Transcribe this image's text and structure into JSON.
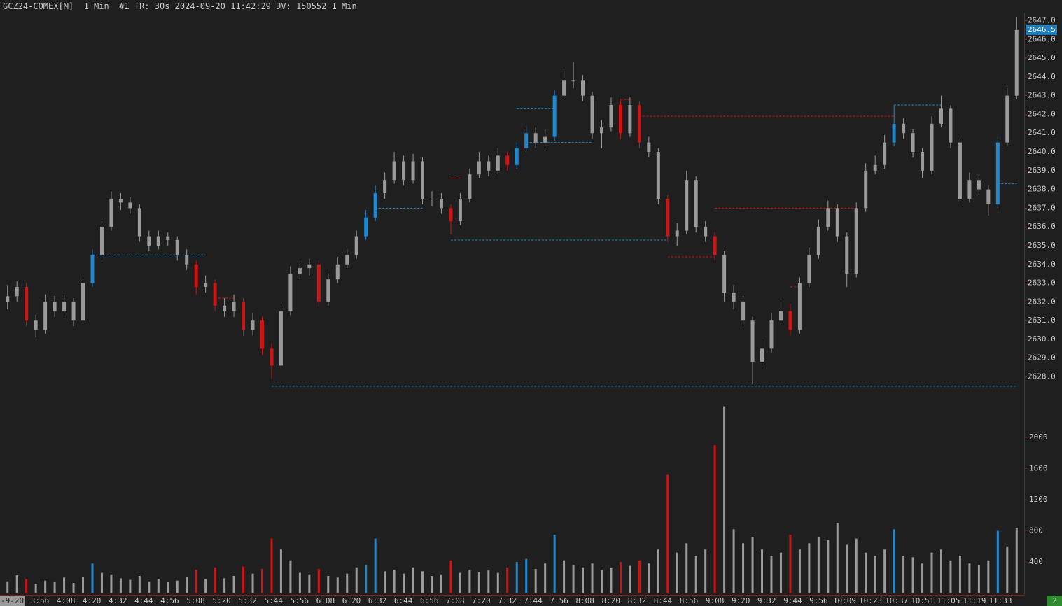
{
  "header": "GCZ24-COMEX[M]  1 Min  #1 TR: 30s 2024-09-20 11:42:29 DV: 150552 1 Min",
  "chart_data": {
    "type": "candlestick",
    "open": [
      2632.0,
      2632.3,
      2632.8,
      2631.0,
      2630.5,
      2632.0,
      2631.5,
      2632.0,
      2631.0,
      2633.0,
      2634.5,
      2636.0,
      2637.5,
      2637.3,
      2637.0,
      2635.5,
      2635.0,
      2635.5,
      2635.3,
      2634.5,
      2634.0,
      2632.8,
      2633.0,
      2631.8,
      2631.5,
      2632.0,
      2630.5,
      2631.0,
      2629.5,
      2628.6,
      2631.5,
      2633.5,
      2633.8,
      2634.0,
      2632.0,
      2633.2,
      2634.0,
      2634.5,
      2635.5,
      2636.5,
      2637.8,
      2638.5,
      2639.5,
      2638.5,
      2639.5,
      2637.5,
      2637.5,
      2637.0,
      2636.3,
      2637.5,
      2638.8,
      2639.5,
      2639.0,
      2639.8,
      2639.3,
      2640.2,
      2641.0,
      2640.5,
      2640.8,
      2643.0,
      2643.8,
      2643.8,
      2643.0,
      2641.0,
      2641.3,
      2642.5,
      2641.0,
      2642.5,
      2640.5,
      2640.0,
      2637.5,
      2635.5,
      2635.8,
      2638.5,
      2636.0,
      2635.5,
      2634.5,
      2632.5,
      2632.0,
      2631.0,
      2628.8,
      2629.5,
      2631.0,
      2631.5,
      2630.5,
      2633.0,
      2634.5,
      2636.0,
      2637.0,
      2635.5,
      2633.5,
      2637.0,
      2639.0,
      2639.3,
      2640.5,
      2641.5,
      2641.0,
      2640.0,
      2639.0,
      2641.5,
      2642.3,
      2640.5,
      2637.5,
      2638.5,
      2638.0,
      2637.2,
      2640.5,
      2643.0
    ],
    "high": [
      2632.9,
      2633.1,
      2633.0,
      2631.3,
      2632.4,
      2632.3,
      2632.5,
      2632.2,
      2633.4,
      2634.8,
      2636.3,
      2637.9,
      2637.8,
      2637.6,
      2637.2,
      2635.8,
      2635.8,
      2635.7,
      2635.5,
      2634.8,
      2634.2,
      2633.4,
      2633.2,
      2632.2,
      2632.4,
      2632.2,
      2631.4,
      2631.2,
      2629.8,
      2631.8,
      2633.9,
      2634.2,
      2634.3,
      2634.2,
      2633.5,
      2634.4,
      2634.8,
      2635.8,
      2636.9,
      2638.2,
      2638.9,
      2640.0,
      2639.8,
      2639.9,
      2639.7,
      2637.9,
      2637.8,
      2637.2,
      2637.8,
      2639.1,
      2640.0,
      2639.8,
      2640.2,
      2640.0,
      2640.5,
      2641.4,
      2641.3,
      2641.2,
      2643.3,
      2644.3,
      2644.8,
      2644.1,
      2643.2,
      2641.7,
      2642.9,
      2642.8,
      2642.9,
      2642.7,
      2640.8,
      2640.2,
      2637.7,
      2636.2,
      2639.0,
      2638.7,
      2636.3,
      2635.7,
      2634.7,
      2632.9,
      2632.3,
      2631.2,
      2629.9,
      2631.4,
      2632.0,
      2631.9,
      2633.3,
      2634.9,
      2636.4,
      2637.4,
      2637.2,
      2635.7,
      2637.3,
      2639.4,
      2639.8,
      2640.9,
      2642.5,
      2641.8,
      2641.2,
      2640.2,
      2641.9,
      2643.0,
      2642.5,
      2640.7,
      2638.9,
      2638.8,
      2638.2,
      2640.8,
      2643.4,
      2647.2
    ],
    "low": [
      2631.6,
      2632.0,
      2630.7,
      2630.1,
      2630.3,
      2631.2,
      2631.2,
      2630.7,
      2630.8,
      2632.8,
      2634.3,
      2635.8,
      2636.9,
      2636.7,
      2635.2,
      2634.7,
      2634.8,
      2635.0,
      2634.2,
      2633.7,
      2632.4,
      2632.5,
      2631.5,
      2631.2,
      2631.2,
      2630.2,
      2630.2,
      2629.2,
      2627.9,
      2628.4,
      2631.3,
      2633.2,
      2633.4,
      2631.7,
      2631.8,
      2633.0,
      2633.8,
      2634.3,
      2635.3,
      2636.3,
      2637.5,
      2638.3,
      2638.2,
      2638.3,
      2637.2,
      2637.1,
      2636.7,
      2635.6,
      2636.1,
      2637.3,
      2638.6,
      2638.7,
      2638.8,
      2639.0,
      2639.1,
      2640.0,
      2640.2,
      2640.3,
      2640.6,
      2642.8,
      2643.4,
      2642.7,
      2640.7,
      2640.2,
      2641.1,
      2640.7,
      2640.8,
      2640.2,
      2639.7,
      2637.2,
      2635.2,
      2635.0,
      2635.6,
      2635.7,
      2635.2,
      2634.2,
      2632.0,
      2631.6,
      2630.6,
      2627.6,
      2628.5,
      2629.3,
      2630.8,
      2630.2,
      2630.3,
      2632.8,
      2634.3,
      2635.8,
      2635.2,
      2632.8,
      2633.3,
      2636.8,
      2638.8,
      2639.1,
      2640.3,
      2640.7,
      2639.7,
      2638.6,
      2638.8,
      2641.3,
      2640.2,
      2637.2,
      2637.3,
      2637.7,
      2636.6,
      2637.0,
      2640.3,
      2642.8
    ],
    "close": [
      2632.3,
      2632.8,
      2631.0,
      2630.5,
      2632.0,
      2631.5,
      2632.0,
      2631.0,
      2633.0,
      2634.5,
      2636.0,
      2637.5,
      2637.3,
      2637.0,
      2635.5,
      2635.0,
      2635.5,
      2635.3,
      2634.5,
      2634.0,
      2632.8,
      2633.0,
      2631.8,
      2631.5,
      2632.0,
      2630.5,
      2631.0,
      2629.5,
      2628.6,
      2631.5,
      2633.5,
      2633.8,
      2634.0,
      2632.0,
      2633.2,
      2634.0,
      2634.5,
      2635.5,
      2636.5,
      2637.8,
      2638.5,
      2639.5,
      2638.5,
      2639.5,
      2637.5,
      2637.5,
      2637.0,
      2636.3,
      2637.5,
      2638.8,
      2639.5,
      2639.0,
      2639.8,
      2639.3,
      2640.2,
      2641.0,
      2640.5,
      2640.8,
      2643.0,
      2643.8,
      2643.8,
      2643.0,
      2641.0,
      2641.3,
      2642.5,
      2641.0,
      2642.5,
      2640.5,
      2640.0,
      2637.5,
      2635.5,
      2635.8,
      2638.5,
      2636.0,
      2635.5,
      2634.5,
      2632.5,
      2632.0,
      2631.0,
      2628.8,
      2629.5,
      2631.0,
      2631.5,
      2630.5,
      2633.0,
      2634.5,
      2636.0,
      2637.0,
      2635.5,
      2633.5,
      2637.0,
      2639.0,
      2639.3,
      2640.5,
      2641.5,
      2641.0,
      2640.0,
      2639.0,
      2641.5,
      2642.3,
      2640.5,
      2637.5,
      2638.5,
      2638.0,
      2637.2,
      2640.5,
      2643.0,
      2646.5
    ],
    "volume": [
      150,
      230,
      180,
      120,
      160,
      140,
      200,
      130,
      210,
      380,
      260,
      240,
      190,
      170,
      220,
      150,
      180,
      140,
      160,
      210,
      300,
      180,
      330,
      190,
      220,
      340,
      250,
      310,
      700,
      560,
      420,
      260,
      240,
      310,
      220,
      200,
      250,
      330,
      360,
      700,
      280,
      300,
      250,
      330,
      280,
      220,
      240,
      420,
      260,
      300,
      270,
      290,
      260,
      330,
      400,
      440,
      310,
      380,
      750,
      420,
      360,
      330,
      380,
      300,
      320,
      400,
      350,
      420,
      380,
      560,
      1520,
      520,
      640,
      480,
      560,
      1900,
      2400,
      820,
      640,
      720,
      560,
      480,
      520,
      750,
      560,
      640,
      720,
      680,
      900,
      620,
      700,
      520,
      480,
      560,
      820,
      480,
      460,
      380,
      520,
      560,
      420,
      480,
      380,
      360,
      420,
      800,
      600,
      840
    ],
    "colors": [
      "#9a9a9a",
      "#9a9a9a",
      "#d01414",
      "#9a9a9a",
      "#9a9a9a",
      "#9a9a9a",
      "#9a9a9a",
      "#9a9a9a",
      "#9a9a9a",
      "#1e88d0",
      "#9a9a9a",
      "#9a9a9a",
      "#9a9a9a",
      "#9a9a9a",
      "#9a9a9a",
      "#9a9a9a",
      "#9a9a9a",
      "#9a9a9a",
      "#9a9a9a",
      "#9a9a9a",
      "#d01414",
      "#9a9a9a",
      "#d01414",
      "#9a9a9a",
      "#9a9a9a",
      "#d01414",
      "#9a9a9a",
      "#d01414",
      "#d01414",
      "#9a9a9a",
      "#9a9a9a",
      "#9a9a9a",
      "#9a9a9a",
      "#d01414",
      "#9a9a9a",
      "#9a9a9a",
      "#9a9a9a",
      "#9a9a9a",
      "#1e88d0",
      "#1e88d0",
      "#9a9a9a",
      "#9a9a9a",
      "#9a9a9a",
      "#9a9a9a",
      "#9a9a9a",
      "#9a9a9a",
      "#9a9a9a",
      "#d01414",
      "#9a9a9a",
      "#9a9a9a",
      "#9a9a9a",
      "#9a9a9a",
      "#9a9a9a",
      "#d01414",
      "#1e88d0",
      "#1e88d0",
      "#9a9a9a",
      "#9a9a9a",
      "#1e88d0",
      "#9a9a9a",
      "#9a9a9a",
      "#9a9a9a",
      "#9a9a9a",
      "#9a9a9a",
      "#9a9a9a",
      "#d01414",
      "#9a9a9a",
      "#d01414",
      "#9a9a9a",
      "#9a9a9a",
      "#d01414",
      "#9a9a9a",
      "#9a9a9a",
      "#9a9a9a",
      "#9a9a9a",
      "#d01414",
      "#9a9a9a",
      "#9a9a9a",
      "#9a9a9a",
      "#9a9a9a",
      "#9a9a9a",
      "#9a9a9a",
      "#9a9a9a",
      "#d01414",
      "#9a9a9a",
      "#9a9a9a",
      "#9a9a9a",
      "#9a9a9a",
      "#9a9a9a",
      "#9a9a9a",
      "#9a9a9a",
      "#9a9a9a",
      "#9a9a9a",
      "#9a9a9a",
      "#1e88d0",
      "#9a9a9a",
      "#9a9a9a",
      "#9a9a9a",
      "#9a9a9a",
      "#9a9a9a",
      "#9a9a9a",
      "#9a9a9a",
      "#9a9a9a",
      "#9a9a9a",
      "#9a9a9a",
      "#1e88d0",
      "#9a9a9a",
      "#9a9a9a"
    ],
    "ylim": [
      2626.9,
      2648.1
    ],
    "yticks": [
      {
        "value": 2628,
        "label": "2628.0"
      },
      {
        "value": 2629,
        "label": "2629.0"
      },
      {
        "value": 2630,
        "label": "2630.0"
      },
      {
        "value": 2631,
        "label": "2631.0"
      },
      {
        "value": 2632,
        "label": "2632.0"
      },
      {
        "value": 2633,
        "label": "2633.0"
      },
      {
        "value": 2634,
        "label": "2634.0"
      },
      {
        "value": 2635,
        "label": "2635.0"
      },
      {
        "value": 2636,
        "label": "2636.0"
      },
      {
        "value": 2637,
        "label": "2637.0"
      },
      {
        "value": 2638,
        "label": "2638.0"
      },
      {
        "value": 2639,
        "label": "2639.0"
      },
      {
        "value": 2640,
        "label": "2640.0"
      },
      {
        "value": 2641,
        "label": "2641.0"
      },
      {
        "value": 2642,
        "label": "2642.0"
      },
      {
        "value": 2643,
        "label": "2643.0"
      },
      {
        "value": 2644,
        "label": "2644.0"
      },
      {
        "value": 2645,
        "label": "2645.0"
      },
      {
        "value": 2646,
        "label": "2646.0"
      },
      {
        "value": 2647,
        "label": "2647.0"
      }
    ],
    "vlim": [
      0,
      2450
    ],
    "vticks": [
      400,
      800,
      1200,
      1600,
      2000
    ],
    "time_labels": [
      "3:56",
      "4:08",
      "4:20",
      "4:32",
      "4:44",
      "4:56",
      "5:08",
      "5:20",
      "5:32",
      "5:44",
      "5:56",
      "6:08",
      "6:20",
      "6:32",
      "6:44",
      "6:56",
      "7:08",
      "7:20",
      "7:32",
      "7:44",
      "7:56",
      "8:08",
      "8:20",
      "8:32",
      "8:44",
      "8:56",
      "9:08",
      "9:20",
      "9:32",
      "9:44",
      "9:56",
      "10:09",
      "10:23",
      "10:37",
      "10:51",
      "11:05",
      "11:19",
      "11:33"
    ],
    "date_label": "-9-20",
    "status": "2",
    "levels": [
      {
        "price": 2634.5,
        "start": 9,
        "end": 21,
        "color": "#1e88d0"
      },
      {
        "price": 2637.0,
        "start": 39,
        "end": 44,
        "color": "#1e88d0"
      },
      {
        "price": 2635.3,
        "start": 47,
        "end": 70,
        "color": "#1e88d0"
      },
      {
        "price": 2640.5,
        "start": 55,
        "end": 62,
        "color": "#1e88d0"
      },
      {
        "price": 2642.3,
        "start": 54,
        "end": 58,
        "color": "#1e88d0"
      },
      {
        "price": 2627.5,
        "start": 28,
        "end": 107,
        "color": "#1e88d0"
      },
      {
        "price": 2642.5,
        "start": 94,
        "end": 99,
        "color": "#1e88d0"
      },
      {
        "price": 2638.3,
        "start": 105,
        "end": 107,
        "color": "#1e88d0"
      },
      {
        "price": 2641.9,
        "start": 67,
        "end": 94,
        "color": "#d01414"
      },
      {
        "price": 2637.0,
        "start": 75,
        "end": 90,
        "color": "#d01414"
      },
      {
        "price": 2634.4,
        "start": 70,
        "end": 75,
        "color": "#d01414"
      },
      {
        "price": 2632.2,
        "start": 22,
        "end": 24,
        "color": "#d01414"
      },
      {
        "price": 2638.6,
        "start": 47,
        "end": 48,
        "color": "#d01414"
      },
      {
        "price": 2642.8,
        "start": 65,
        "end": 66,
        "color": "#d01414"
      },
      {
        "price": 2632.8,
        "start": 83,
        "end": 84,
        "color": "#d01414"
      }
    ]
  }
}
